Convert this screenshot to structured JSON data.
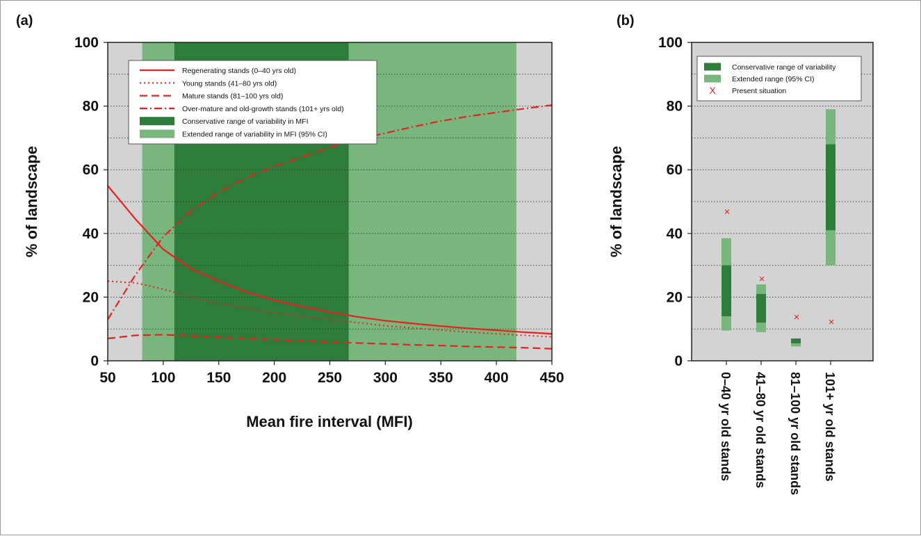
{
  "chart_data": [
    {
      "panel_label": "(a)",
      "type": "line",
      "xlabel": "Mean fire interval (MFI)",
      "ylabel": "% of landscape",
      "xlim": [
        50,
        450
      ],
      "ylim": [
        0,
        100
      ],
      "xticks": [
        50,
        100,
        150,
        200,
        250,
        300,
        350,
        400,
        450
      ],
      "yticks": [
        0,
        20,
        40,
        60,
        80,
        100
      ],
      "grid": "horizontal dotted",
      "legend_position": "top-left",
      "background_color": "#d3d3d3",
      "bands": [
        {
          "name": "Extended range of variability in MFI (95% CI)",
          "x": [
            81,
            418
          ],
          "color": "#79b67e"
        },
        {
          "name": "Conservative range of variability in MFI",
          "x": [
            110,
            267
          ],
          "color": "#2e7d3a"
        }
      ],
      "series": [
        {
          "name": "Regenerating stands (0–40 yrs old)",
          "style": "solid",
          "color": "#e8201f",
          "x": [
            50,
            75,
            100,
            125,
            150,
            175,
            200,
            225,
            250,
            275,
            300,
            325,
            350,
            375,
            400,
            425,
            450
          ],
          "y": [
            55,
            44.5,
            35,
            29,
            25,
            21.6,
            19,
            17,
            15.3,
            13.8,
            12.6,
            11.7,
            10.9,
            10.2,
            9.6,
            9,
            8.5
          ]
        },
        {
          "name": "Young stands (41–80 yrs old)",
          "style": "dotted",
          "color": "#e8201f",
          "x": [
            50,
            75,
            100,
            125,
            150,
            175,
            200,
            225,
            250,
            275,
            300,
            325,
            350,
            375,
            400,
            425,
            450
          ],
          "y": [
            25,
            24.5,
            22.5,
            20,
            18,
            16.5,
            15,
            14,
            13,
            12,
            11,
            10.3,
            9.6,
            9,
            8.5,
            8,
            7.5
          ]
        },
        {
          "name": "Mature stands (81–100 yrs old)",
          "style": "dashed",
          "color": "#e8201f",
          "x": [
            50,
            75,
            100,
            125,
            150,
            175,
            200,
            225,
            250,
            275,
            300,
            325,
            350,
            375,
            400,
            425,
            450
          ],
          "y": [
            7,
            8,
            8.2,
            7.8,
            7.4,
            7,
            6.6,
            6.2,
            5.9,
            5.6,
            5.3,
            5,
            4.8,
            4.5,
            4.3,
            4.1,
            3.8
          ]
        },
        {
          "name": "Over-mature and old-growth stands (101+ yrs old)",
          "style": "dashdot",
          "color": "#e8201f",
          "x": [
            50,
            75,
            100,
            125,
            150,
            175,
            200,
            225,
            250,
            275,
            300,
            325,
            350,
            375,
            400,
            425,
            450
          ],
          "y": [
            13,
            27,
            39,
            47,
            53,
            57.5,
            61,
            64,
            67,
            69.5,
            71.5,
            73.5,
            75.3,
            76.8,
            78,
            79.2,
            80.3
          ]
        }
      ],
      "legend": [
        {
          "label": "Regenerating stands (0–40 yrs old)",
          "kind": "line",
          "style": "solid"
        },
        {
          "label": "Young stands (41–80 yrs old)",
          "kind": "line",
          "style": "dotted"
        },
        {
          "label": "Mature stands (81–100 yrs old)",
          "kind": "line",
          "style": "dashed"
        },
        {
          "label": "Over-mature and old-growth stands (101+ yrs old)",
          "kind": "line",
          "style": "dashdot"
        },
        {
          "label": "Conservative range of variability in MFI",
          "kind": "patch",
          "color": "#2e7d3a"
        },
        {
          "label": "Extended range of variability in MFI (95% CI)",
          "kind": "patch",
          "color": "#79b67e"
        }
      ]
    },
    {
      "panel_label": "(b)",
      "type": "range",
      "ylabel": "% of landscape",
      "ylim": [
        0,
        100
      ],
      "yticks": [
        0,
        20,
        40,
        60,
        80,
        100
      ],
      "grid": "horizontal dotted",
      "legend_position": "top",
      "background_color": "#d3d3d3",
      "categories": [
        "0–40 yr old stands",
        "41–80 yr old stands",
        "81–100 yr old stands",
        "101+ yr old stands"
      ],
      "extended_range": [
        [
          9.5,
          38.5
        ],
        [
          9,
          24
        ],
        [
          4.5,
          7
        ],
        [
          30,
          79
        ]
      ],
      "conservative_range": [
        [
          14,
          30
        ],
        [
          12,
          21
        ],
        [
          5.5,
          7
        ],
        [
          41,
          68
        ]
      ],
      "present_situation": [
        47,
        26,
        14,
        12.5
      ],
      "legend": [
        {
          "label": "Conservative range of variability",
          "kind": "patch",
          "color": "#2e7d3a"
        },
        {
          "label": "Extended range (95% CI)",
          "kind": "patch",
          "color": "#79b67e"
        },
        {
          "label": "Present situation",
          "kind": "marker",
          "marker": "X"
        }
      ]
    }
  ]
}
